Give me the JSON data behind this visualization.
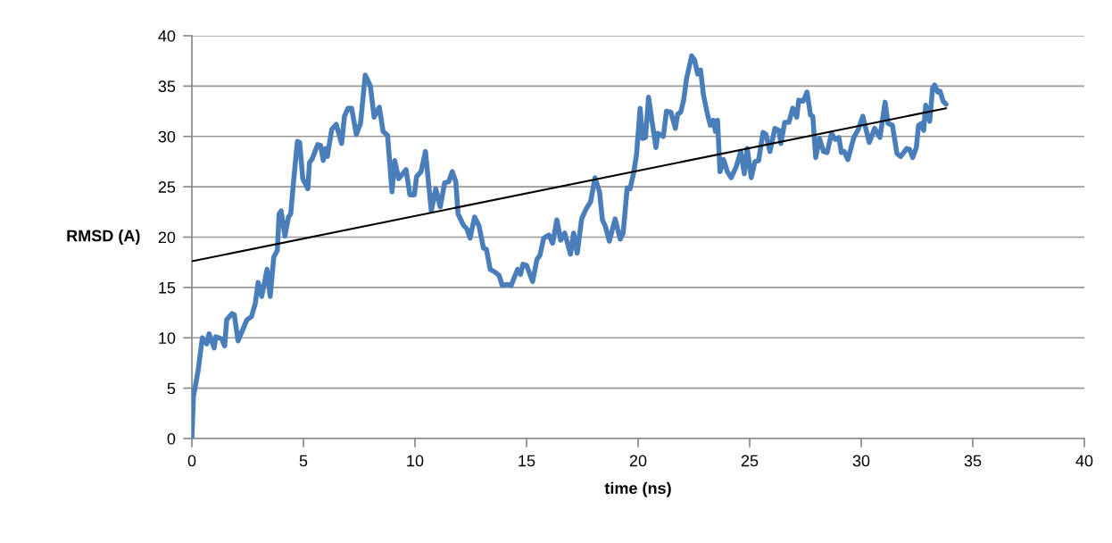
{
  "chart_data": {
    "type": "line",
    "xlabel": "time (ns)",
    "ylabel": "RMSD (A)",
    "xlim": [
      0,
      40
    ],
    "xticks": [
      0,
      5,
      10,
      15,
      20,
      25,
      30,
      35,
      40
    ],
    "ylim": [
      0,
      40
    ],
    "yticks": [
      0,
      5,
      10,
      15,
      20,
      25,
      30,
      35,
      40
    ],
    "grid": "y",
    "marker": "none",
    "line_style": "solid",
    "series": [
      {
        "color": "#4a7ebb",
        "x": [
          0,
          0.07,
          0.27,
          0.47,
          0.67,
          0.77,
          1.0,
          1.07,
          1.33,
          1.47,
          1.56,
          1.8,
          1.9,
          2.07,
          2.47,
          2.67,
          2.84,
          2.97,
          3.13,
          3.37,
          3.51,
          3.67,
          3.83,
          3.91,
          4.0,
          4.17,
          4.33,
          4.43,
          4.57,
          4.73,
          4.83,
          4.97,
          5.2,
          5.27,
          5.4,
          5.64,
          5.77,
          5.89,
          6.0,
          6.07,
          6.27,
          6.47,
          6.71,
          6.84,
          7.0,
          7.16,
          7.37,
          7.56,
          7.77,
          8.0,
          8.17,
          8.4,
          8.57,
          8.77,
          8.97,
          9.09,
          9.27,
          9.6,
          9.77,
          9.97,
          10.07,
          10.27,
          10.47,
          10.73,
          10.93,
          11.13,
          11.33,
          11.51,
          11.67,
          11.83,
          11.93,
          12.17,
          12.33,
          12.47,
          12.67,
          12.87,
          13.07,
          13.2,
          13.37,
          13.6,
          13.77,
          13.91,
          14.13,
          14.31,
          14.47,
          14.6,
          14.73,
          14.84,
          15.0,
          15.27,
          15.47,
          15.6,
          15.77,
          16.0,
          16.17,
          16.36,
          16.53,
          16.71,
          16.97,
          17.11,
          17.27,
          17.47,
          17.67,
          17.87,
          18.07,
          18.27,
          18.4,
          18.53,
          18.71,
          18.97,
          19.2,
          19.33,
          19.51,
          19.64,
          19.8,
          19.93,
          20.09,
          20.2,
          20.33,
          20.47,
          20.63,
          20.8,
          20.89,
          21.13,
          21.27,
          21.47,
          21.67,
          21.77,
          21.91,
          22.04,
          22.17,
          22.4,
          22.53,
          22.67,
          22.8,
          22.93,
          23.13,
          23.24,
          23.37,
          23.47,
          23.56,
          23.67,
          23.83,
          24.0,
          24.17,
          24.4,
          24.6,
          24.76,
          24.89,
          25.07,
          25.24,
          25.4,
          25.6,
          25.73,
          25.91,
          26.13,
          26.31,
          26.4,
          26.57,
          26.76,
          26.93,
          27.11,
          27.2,
          27.4,
          27.57,
          27.73,
          27.83,
          27.96,
          28.13,
          28.31,
          28.47,
          28.67,
          28.84,
          29.0,
          29.11,
          29.24,
          29.4,
          29.67,
          29.87,
          30.07,
          30.17,
          30.36,
          30.6,
          30.84,
          31.07,
          31.2,
          31.4,
          31.6,
          31.77,
          32.04,
          32.17,
          32.31,
          32.47,
          32.57,
          32.71,
          32.8,
          32.89,
          33.07,
          33.2,
          33.29,
          33.43,
          33.53,
          33.67,
          33.8
        ],
        "values": [
          0,
          4.2,
          6.6,
          10.0,
          9.4,
          10.4,
          9.0,
          10.1,
          9.9,
          9.2,
          11.8,
          12.4,
          12.3,
          9.7,
          11.8,
          12.1,
          13.4,
          15.5,
          14.1,
          16.8,
          14.1,
          18.0,
          18.7,
          22.3,
          22.6,
          20.1,
          22.0,
          22.3,
          25.8,
          29.5,
          29.4,
          25.8,
          24.8,
          27.4,
          27.8,
          29.2,
          29.1,
          27.6,
          28.8,
          28.0,
          30.7,
          31.2,
          29.3,
          32.0,
          32.8,
          32.8,
          30.2,
          31.3,
          36.1,
          35.0,
          31.9,
          32.9,
          30.5,
          30.1,
          24.5,
          27.6,
          25.8,
          26.7,
          24.2,
          24.2,
          26.0,
          26.5,
          28.5,
          22.6,
          24.8,
          23.0,
          25.4,
          25.5,
          26.5,
          25.5,
          22.3,
          21.2,
          20.8,
          19.9,
          22.0,
          21.1,
          18.9,
          18.8,
          16.8,
          16.5,
          16.2,
          15.2,
          15.3,
          15.2,
          16.1,
          16.8,
          16.3,
          17.3,
          17.2,
          15.6,
          17.8,
          18.2,
          19.9,
          20.2,
          19.4,
          21.7,
          19.7,
          20.4,
          18.3,
          20.4,
          18.4,
          21.8,
          22.8,
          23.5,
          25.9,
          24.5,
          21.7,
          21.1,
          19.6,
          21.8,
          19.8,
          20.4,
          24.9,
          24.8,
          26.4,
          28.2,
          32.8,
          29.8,
          29.9,
          33.9,
          31.4,
          28.9,
          30.3,
          30.0,
          32.5,
          32.4,
          30.8,
          32.2,
          32.4,
          33.6,
          35.7,
          38.0,
          37.6,
          36.2,
          36.6,
          34.1,
          32.0,
          31.1,
          31.6,
          30.5,
          31.6,
          26.5,
          27.7,
          26.5,
          25.9,
          27.0,
          28.5,
          26.3,
          28.8,
          25.9,
          27.5,
          27.6,
          30.4,
          30.2,
          28.5,
          30.8,
          30.6,
          29.3,
          31.4,
          31.4,
          32.8,
          31.9,
          33.6,
          33.5,
          34.4,
          32.1,
          32.0,
          27.9,
          29.8,
          28.5,
          28.4,
          30.3,
          29.7,
          29.9,
          28.4,
          28.5,
          27.7,
          29.9,
          30.7,
          32.0,
          31.1,
          29.4,
          30.8,
          29.9,
          33.4,
          31.3,
          31.1,
          28.3,
          28.0,
          28.8,
          28.7,
          27.9,
          28.9,
          31.1,
          31.3,
          30.6,
          33.1,
          31.5,
          34.8,
          35.1,
          34.4,
          34.5,
          33.5,
          33.2
        ]
      },
      {
        "type": "line",
        "color": "#000000",
        "x": [
          0,
          33.8
        ],
        "values": [
          17.6,
          32.8
        ]
      }
    ]
  }
}
